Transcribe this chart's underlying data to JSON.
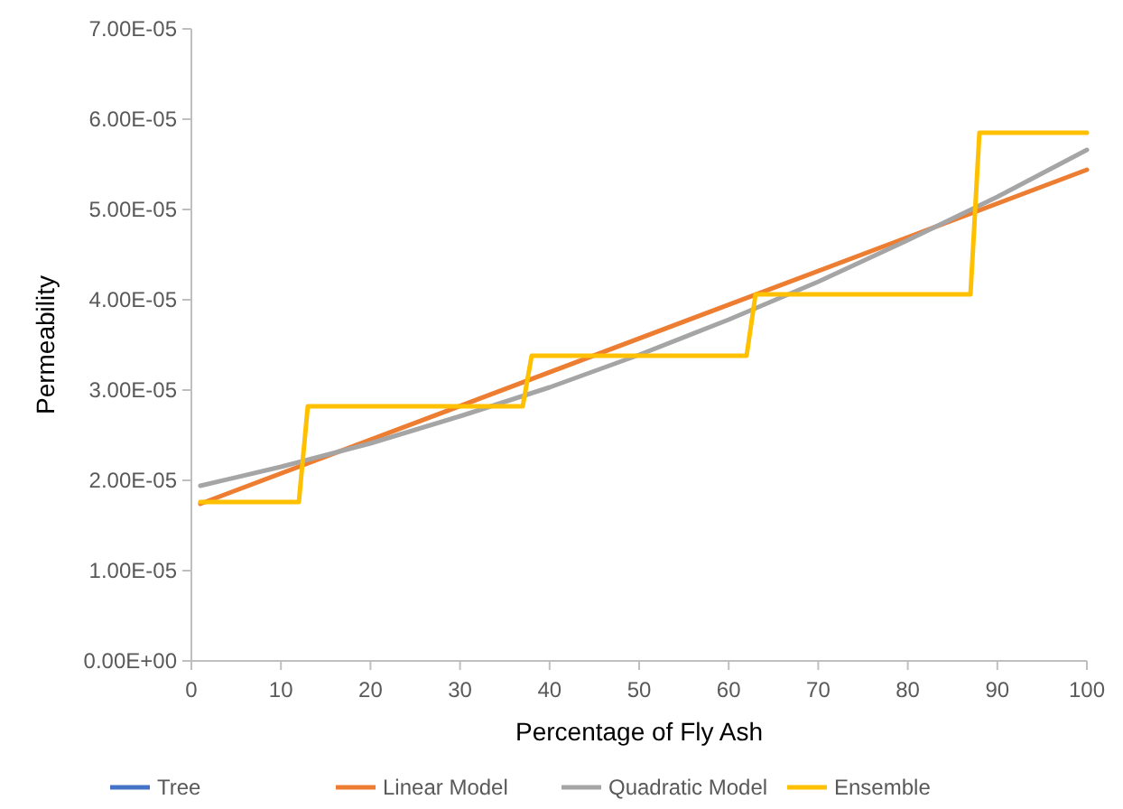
{
  "chart_data": {
    "type": "line",
    "xlabel": "Percentage of Fly Ash",
    "ylabel": "Permeability",
    "xlim": [
      0,
      100
    ],
    "xticks": [
      0,
      10,
      20,
      30,
      40,
      50,
      60,
      70,
      80,
      90,
      100
    ],
    "ylim": [
      0,
      7e-05
    ],
    "yticks": [
      {
        "value": 0,
        "label": "0.00E+00"
      },
      {
        "value": 1e-05,
        "label": "1.00E-05"
      },
      {
        "value": 2e-05,
        "label": "2.00E-05"
      },
      {
        "value": 3e-05,
        "label": "3.00E-05"
      },
      {
        "value": 4e-05,
        "label": "4.00E-05"
      },
      {
        "value": 5e-05,
        "label": "5.00E-05"
      },
      {
        "value": 6e-05,
        "label": "6.00E-05"
      },
      {
        "value": 7e-05,
        "label": "7.00E-05"
      }
    ],
    "grid": false,
    "legend": "bottom",
    "marker": "none",
    "line_style": "solid",
    "series": [
      {
        "name": "Tree",
        "color": "#4472c4"
      },
      {
        "name": "Linear Model",
        "color": "#ed7d31",
        "x": [
          1,
          100
        ],
        "values": [
          1.74e-05,
          5.44e-05
        ]
      },
      {
        "name": "Quadratic Model",
        "color": "#a5a5a5",
        "x": [
          1,
          10,
          20,
          30,
          40,
          50,
          60,
          70,
          80,
          90,
          100
        ],
        "values": [
          1.94e-05,
          2.15e-05,
          2.41e-05,
          2.71e-05,
          3.03e-05,
          3.39e-05,
          3.78e-05,
          4.2e-05,
          4.66e-05,
          5.14e-05,
          5.66e-05
        ]
      },
      {
        "name": "Ensemble",
        "color": "#ffc000",
        "x": [
          1,
          12,
          13,
          37,
          38,
          62,
          63,
          87,
          88,
          100
        ],
        "values": [
          1.76e-05,
          1.76e-05,
          2.82e-05,
          2.82e-05,
          3.38e-05,
          3.38e-05,
          4.06e-05,
          4.06e-05,
          5.85e-05,
          5.85e-05
        ]
      }
    ]
  }
}
